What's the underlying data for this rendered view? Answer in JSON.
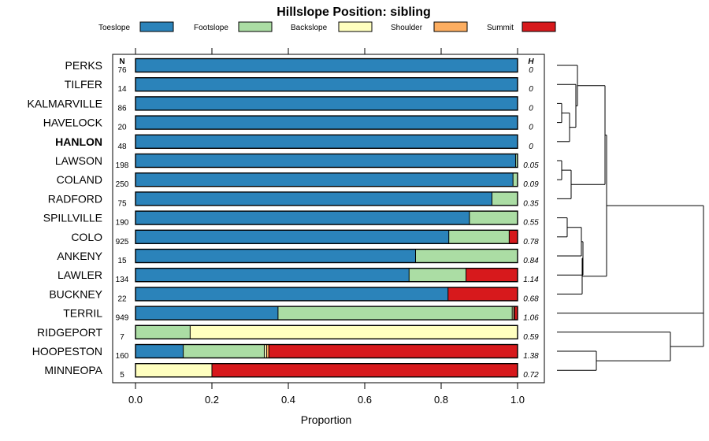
{
  "chart_data": {
    "type": "bar",
    "stacked": true,
    "orientation": "horizontal",
    "title": "Hillslope Position: sibling",
    "xlabel": "Proportion",
    "xlim": [
      0,
      1
    ],
    "xticks": [
      "0.0",
      "0.2",
      "0.4",
      "0.6",
      "0.8",
      "1.0"
    ],
    "n_header": "N",
    "h_header": "H",
    "legend_position": "top",
    "highlight_series": "HANLON",
    "legend": [
      {
        "name": "Toeslope",
        "color": "#2b83ba"
      },
      {
        "name": "Footslope",
        "color": "#abdda4"
      },
      {
        "name": "Backslope",
        "color": "#ffffbf"
      },
      {
        "name": "Shoulder",
        "color": "#fdae61"
      },
      {
        "name": "Summit",
        "color": "#d7191c"
      }
    ],
    "rows": [
      {
        "label": "PERKS",
        "n": "76",
        "h": "0",
        "values": [
          1.0,
          0,
          0,
          0,
          0
        ]
      },
      {
        "label": "TILFER",
        "n": "14",
        "h": "0",
        "values": [
          1.0,
          0,
          0,
          0,
          0
        ]
      },
      {
        "label": "KALMARVILLE",
        "n": "86",
        "h": "0",
        "values": [
          1.0,
          0,
          0,
          0,
          0
        ]
      },
      {
        "label": "HAVELOCK",
        "n": "20",
        "h": "0",
        "values": [
          1.0,
          0,
          0,
          0,
          0
        ]
      },
      {
        "label": "HANLON",
        "n": "48",
        "h": "0",
        "values": [
          1.0,
          0,
          0,
          0,
          0
        ]
      },
      {
        "label": "LAWSON",
        "n": "198",
        "h": "0.05",
        "values": [
          0.995,
          0.005,
          0,
          0,
          0
        ]
      },
      {
        "label": "COLAND",
        "n": "250",
        "h": "0.09",
        "values": [
          0.988,
          0.012,
          0,
          0,
          0
        ]
      },
      {
        "label": "RADFORD",
        "n": "75",
        "h": "0.35",
        "values": [
          0.933,
          0.067,
          0,
          0,
          0
        ]
      },
      {
        "label": "SPILLVILLE",
        "n": "190",
        "h": "0.55",
        "values": [
          0.874,
          0.126,
          0,
          0,
          0
        ]
      },
      {
        "label": "COLO",
        "n": "925",
        "h": "0.78",
        "values": [
          0.82,
          0.158,
          0,
          0,
          0.022
        ]
      },
      {
        "label": "ANKENY",
        "n": "15",
        "h": "0.84",
        "values": [
          0.733,
          0.267,
          0,
          0,
          0
        ]
      },
      {
        "label": "LAWLER",
        "n": "134",
        "h": "1.14",
        "values": [
          0.716,
          0.149,
          0,
          0,
          0.135
        ]
      },
      {
        "label": "BUCKNEY",
        "n": "22",
        "h": "0.68",
        "values": [
          0.818,
          0,
          0,
          0,
          0.182
        ]
      },
      {
        "label": "TERRIL",
        "n": "949",
        "h": "1.06",
        "values": [
          0.373,
          0.613,
          0.004,
          0.002,
          0.008
        ]
      },
      {
        "label": "RIDGEPORT",
        "n": "7",
        "h": "0.59",
        "values": [
          0,
          0.143,
          0.857,
          0,
          0
        ]
      },
      {
        "label": "HOOPESTON",
        "n": "160",
        "h": "1.38",
        "values": [
          0.125,
          0.212,
          0.006,
          0.006,
          0.651
        ]
      },
      {
        "label": "MINNEOPA",
        "n": "5",
        "h": "0.72",
        "values": [
          0,
          0,
          0.2,
          0,
          0.8
        ]
      }
    ]
  }
}
